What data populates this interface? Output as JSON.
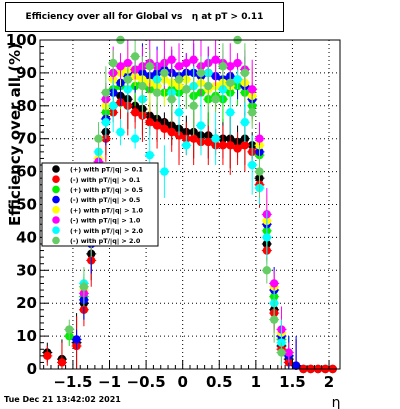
{
  "title": "Efficiency over all for Global vs   η at pT > 0.11",
  "timestamp": "Tue Dec 21 13:42:02 2021",
  "chart_data": {
    "type": "scatter",
    "title": "Efficiency over all for Global vs   η at pT > 0.11",
    "xlabel": "η",
    "ylabel": "Efficiency over all (%)",
    "xlim": [
      -1.95,
      2.15
    ],
    "ylim": [
      0,
      100
    ],
    "xticks": [
      -1.5,
      -1,
      -0.5,
      0,
      0.5,
      1,
      1.5,
      2
    ],
    "xtick_labels": [
      "−1.5",
      "−1",
      "−0.5",
      "0",
      "0.5",
      "1",
      "1.5",
      "2"
    ],
    "yticks": [
      0,
      10,
      20,
      30,
      40,
      50,
      60,
      70,
      80,
      90,
      100
    ],
    "ytick_labels": [
      "0",
      "10",
      "20",
      "30",
      "40",
      "50",
      "60",
      "70",
      "80",
      "90",
      "100"
    ],
    "grid": true,
    "legend_position": "middle-left",
    "series": [
      {
        "name": "(+) with pT/|q| > 0.1",
        "color": "#000000",
        "points": [
          [
            -1.85,
            5
          ],
          [
            -1.65,
            3
          ],
          [
            -1.45,
            8
          ],
          [
            -1.35,
            20
          ],
          [
            -1.25,
            35
          ],
          [
            -1.15,
            58
          ],
          [
            -1.05,
            72
          ],
          [
            -0.95,
            80
          ],
          [
            -0.85,
            83
          ],
          [
            -0.75,
            82
          ],
          [
            -0.65,
            80
          ],
          [
            -0.55,
            79
          ],
          [
            -0.45,
            77
          ],
          [
            -0.35,
            76
          ],
          [
            -0.25,
            75
          ],
          [
            -0.15,
            74
          ],
          [
            -0.05,
            73
          ],
          [
            0.05,
            72
          ],
          [
            0.15,
            72
          ],
          [
            0.25,
            71
          ],
          [
            0.35,
            71
          ],
          [
            0.45,
            70
          ],
          [
            0.55,
            70
          ],
          [
            0.65,
            70
          ],
          [
            0.75,
            69
          ],
          [
            0.85,
            70
          ],
          [
            0.95,
            68
          ],
          [
            1.05,
            58
          ],
          [
            1.15,
            38
          ],
          [
            1.25,
            18
          ],
          [
            1.35,
            7
          ],
          [
            1.45,
            3
          ],
          [
            1.55,
            1
          ],
          [
            1.65,
            0
          ],
          [
            1.75,
            0
          ],
          [
            1.85,
            0
          ],
          [
            1.95,
            0
          ],
          [
            2.05,
            0
          ]
        ]
      },
      {
        "name": "(-) with pT/|q| > 0.1",
        "color": "#ff0000",
        "points": [
          [
            -1.85,
            4
          ],
          [
            -1.65,
            2
          ],
          [
            -1.45,
            7
          ],
          [
            -1.35,
            18
          ],
          [
            -1.25,
            33
          ],
          [
            -1.15,
            56
          ],
          [
            -1.05,
            70
          ],
          [
            -0.95,
            78
          ],
          [
            -0.85,
            81
          ],
          [
            -0.75,
            80
          ],
          [
            -0.65,
            78
          ],
          [
            -0.55,
            77
          ],
          [
            -0.45,
            75
          ],
          [
            -0.35,
            74
          ],
          [
            -0.25,
            73
          ],
          [
            -0.15,
            72
          ],
          [
            -0.05,
            71
          ],
          [
            0.05,
            70
          ],
          [
            0.15,
            70
          ],
          [
            0.25,
            69
          ],
          [
            0.35,
            69
          ],
          [
            0.45,
            68
          ],
          [
            0.55,
            68
          ],
          [
            0.65,
            68
          ],
          [
            0.75,
            67
          ],
          [
            0.85,
            68
          ],
          [
            0.95,
            66
          ],
          [
            1.05,
            56
          ],
          [
            1.15,
            36
          ],
          [
            1.25,
            17
          ],
          [
            1.35,
            6
          ],
          [
            1.45,
            2
          ],
          [
            1.55,
            1
          ],
          [
            1.65,
            0
          ],
          [
            1.75,
            0
          ],
          [
            1.85,
            0
          ],
          [
            1.95,
            0
          ],
          [
            2.05,
            0
          ]
        ]
      },
      {
        "name": "(+) with pT/|q| > 0.5",
        "color": "#00ee00",
        "points": [
          [
            -1.55,
            10
          ],
          [
            -1.35,
            22
          ],
          [
            -1.25,
            40
          ],
          [
            -1.15,
            62
          ],
          [
            -1.05,
            78
          ],
          [
            -0.95,
            85
          ],
          [
            -0.85,
            86
          ],
          [
            -0.75,
            88
          ],
          [
            -0.65,
            86
          ],
          [
            -0.55,
            87
          ],
          [
            -0.45,
            85
          ],
          [
            -0.35,
            86
          ],
          [
            -0.25,
            84
          ],
          [
            -0.15,
            85
          ],
          [
            -0.05,
            84
          ],
          [
            0.05,
            85
          ],
          [
            0.15,
            83
          ],
          [
            0.25,
            84
          ],
          [
            0.35,
            82
          ],
          [
            0.45,
            83
          ],
          [
            0.55,
            82
          ],
          [
            0.65,
            84
          ],
          [
            0.75,
            86
          ],
          [
            0.85,
            84
          ],
          [
            0.95,
            80
          ],
          [
            1.05,
            65
          ],
          [
            1.15,
            42
          ],
          [
            1.25,
            22
          ],
          [
            1.35,
            9
          ],
          [
            1.45,
            4
          ]
        ]
      },
      {
        "name": "(-) with pT/|q| > 0.5",
        "color": "#0000ff",
        "points": [
          [
            -1.45,
            9
          ],
          [
            -1.35,
            21
          ],
          [
            -1.25,
            38
          ],
          [
            -1.15,
            60
          ],
          [
            -1.05,
            76
          ],
          [
            -0.95,
            84
          ],
          [
            -0.85,
            87
          ],
          [
            -0.75,
            89
          ],
          [
            -0.65,
            90
          ],
          [
            -0.55,
            90
          ],
          [
            -0.45,
            89
          ],
          [
            -0.35,
            90
          ],
          [
            -0.25,
            91
          ],
          [
            -0.15,
            90
          ],
          [
            -0.05,
            89
          ],
          [
            0.05,
            90
          ],
          [
            0.15,
            90
          ],
          [
            0.25,
            89
          ],
          [
            0.35,
            90
          ],
          [
            0.45,
            89
          ],
          [
            0.55,
            88
          ],
          [
            0.65,
            89
          ],
          [
            0.75,
            88
          ],
          [
            0.85,
            86
          ],
          [
            0.95,
            82
          ],
          [
            1.05,
            66
          ],
          [
            1.15,
            44
          ],
          [
            1.25,
            24
          ],
          [
            1.35,
            10
          ],
          [
            1.45,
            4
          ],
          [
            1.55,
            1
          ]
        ]
      },
      {
        "name": "(+) with pT/|q| > 1.0",
        "color": "#ffff00",
        "points": [
          [
            -1.35,
            24
          ],
          [
            -1.25,
            42
          ],
          [
            -1.15,
            64
          ],
          [
            -1.05,
            80
          ],
          [
            -0.95,
            88
          ],
          [
            -0.85,
            90
          ],
          [
            -0.75,
            91
          ],
          [
            -0.65,
            89
          ],
          [
            -0.55,
            88
          ],
          [
            -0.45,
            87
          ],
          [
            -0.35,
            86
          ],
          [
            -0.25,
            88
          ],
          [
            -0.15,
            87
          ],
          [
            -0.05,
            86
          ],
          [
            0.05,
            88
          ],
          [
            0.15,
            86
          ],
          [
            0.25,
            87
          ],
          [
            0.35,
            85
          ],
          [
            0.45,
            86
          ],
          [
            0.55,
            87
          ],
          [
            0.65,
            86
          ],
          [
            0.75,
            88
          ],
          [
            0.85,
            87
          ],
          [
            0.95,
            83
          ],
          [
            1.05,
            68
          ],
          [
            1.15,
            45
          ],
          [
            1.25,
            25
          ],
          [
            1.35,
            11
          ],
          [
            1.45,
            5
          ]
        ]
      },
      {
        "name": "(-) with pT/|q| > 1.0",
        "color": "#ff00ff",
        "points": [
          [
            -1.35,
            23
          ],
          [
            -1.25,
            41
          ],
          [
            -1.15,
            63
          ],
          [
            -1.05,
            82
          ],
          [
            -0.95,
            90
          ],
          [
            -0.85,
            92
          ],
          [
            -0.75,
            93
          ],
          [
            -0.65,
            91
          ],
          [
            -0.55,
            92
          ],
          [
            -0.45,
            93
          ],
          [
            -0.35,
            92
          ],
          [
            -0.25,
            93
          ],
          [
            -0.15,
            94
          ],
          [
            -0.05,
            92
          ],
          [
            0.05,
            93
          ],
          [
            0.15,
            94
          ],
          [
            0.25,
            92
          ],
          [
            0.35,
            93
          ],
          [
            0.45,
            94
          ],
          [
            0.55,
            93
          ],
          [
            0.65,
            92
          ],
          [
            0.75,
            93
          ],
          [
            0.85,
            91
          ],
          [
            0.95,
            85
          ],
          [
            1.05,
            70
          ],
          [
            1.15,
            47
          ],
          [
            1.25,
            26
          ],
          [
            1.35,
            12
          ],
          [
            1.45,
            5
          ]
        ]
      },
      {
        "name": "(+) with pT/|q| > 2.0",
        "color": "#00ffff",
        "points": [
          [
            -1.35,
            26
          ],
          [
            -1.25,
            44
          ],
          [
            -1.15,
            66
          ],
          [
            -1.05,
            75
          ],
          [
            -0.95,
            80
          ],
          [
            -0.85,
            72
          ],
          [
            -0.75,
            85
          ],
          [
            -0.65,
            70
          ],
          [
            -0.55,
            82
          ],
          [
            -0.45,
            65
          ],
          [
            -0.35,
            88
          ],
          [
            -0.25,
            60
          ],
          [
            -0.15,
            84
          ],
          [
            -0.05,
            78
          ],
          [
            0.05,
            68
          ],
          [
            0.15,
            86
          ],
          [
            0.25,
            74
          ],
          [
            0.35,
            90
          ],
          [
            0.45,
            70
          ],
          [
            0.55,
            85
          ],
          [
            0.65,
            78
          ],
          [
            0.75,
            88
          ],
          [
            0.85,
            75
          ],
          [
            0.95,
            62
          ],
          [
            1.05,
            55
          ],
          [
            1.15,
            40
          ],
          [
            1.25,
            20
          ],
          [
            1.35,
            8
          ]
        ]
      },
      {
        "name": "(-) with pT/|q| > 2.0",
        "color": "#66cc66",
        "points": [
          [
            -1.55,
            12
          ],
          [
            -1.35,
            25
          ],
          [
            -1.25,
            43
          ],
          [
            -1.15,
            70
          ],
          [
            -1.05,
            84
          ],
          [
            -0.95,
            93
          ],
          [
            -0.85,
            100
          ],
          [
            -0.75,
            88
          ],
          [
            -0.65,
            95
          ],
          [
            -0.55,
            86
          ],
          [
            -0.45,
            92
          ],
          [
            -0.35,
            84
          ],
          [
            -0.25,
            90
          ],
          [
            -0.15,
            82
          ],
          [
            -0.05,
            88
          ],
          [
            0.05,
            85
          ],
          [
            0.15,
            80
          ],
          [
            0.25,
            90
          ],
          [
            0.35,
            86
          ],
          [
            0.45,
            82
          ],
          [
            0.55,
            92
          ],
          [
            0.65,
            87
          ],
          [
            0.75,
            100
          ],
          [
            0.85,
            90
          ],
          [
            0.95,
            78
          ],
          [
            1.05,
            60
          ],
          [
            1.15,
            30
          ],
          [
            1.25,
            15
          ],
          [
            1.35,
            5
          ]
        ]
      }
    ]
  }
}
